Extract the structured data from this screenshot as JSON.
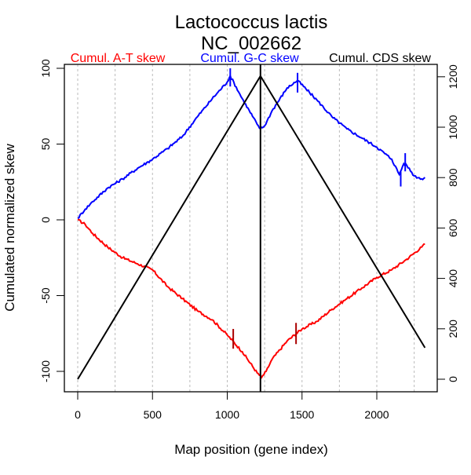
{
  "chart_data": {
    "type": "line",
    "title": "Lactococcus lactis",
    "subtitle": "NC_002662",
    "xlabel": "Map position (gene index)",
    "ylabel": "Cumulated normalized skew",
    "xlim": [
      0,
      2322
    ],
    "ylim_left": [
      -104,
      100
    ],
    "ylim_right": [
      0,
      1250
    ],
    "x_ticks": [
      0,
      500,
      1000,
      1500,
      2000
    ],
    "y_ticks_left": [
      -100,
      -50,
      0,
      50,
      100
    ],
    "y_ticks_right": [
      0,
      200,
      400,
      600,
      800,
      1000,
      1200
    ],
    "grid": "vertical dashed every 250",
    "origin_marker_x": 1222,
    "legend": [
      {
        "label": "Cumul. A-T skew",
        "color": "#ff0000"
      },
      {
        "label": "Cumul. G-C skew",
        "color": "#0000ff"
      },
      {
        "label": "Cumul. CDS skew",
        "color": "#000000"
      }
    ],
    "series": [
      {
        "name": "Cumul. A-T skew",
        "axis": "left",
        "color": "#ff0000",
        "points": [
          [
            0,
            0
          ],
          [
            50,
            -3
          ],
          [
            100,
            -9
          ],
          [
            200,
            -18
          ],
          [
            300,
            -25
          ],
          [
            400,
            -29
          ],
          [
            500,
            -33
          ],
          [
            600,
            -44
          ],
          [
            700,
            -52
          ],
          [
            800,
            -60
          ],
          [
            900,
            -66
          ],
          [
            1000,
            -76
          ],
          [
            1100,
            -87
          ],
          [
            1200,
            -101
          ],
          [
            1230,
            -104
          ],
          [
            1260,
            -100
          ],
          [
            1300,
            -92
          ],
          [
            1400,
            -80
          ],
          [
            1500,
            -72
          ],
          [
            1600,
            -67
          ],
          [
            1700,
            -59
          ],
          [
            1800,
            -52
          ],
          [
            1900,
            -45
          ],
          [
            2000,
            -38
          ],
          [
            2100,
            -33
          ],
          [
            2200,
            -26
          ],
          [
            2300,
            -18
          ],
          [
            2322,
            -16
          ]
        ],
        "markers": [
          [
            1040,
            -72,
            -85
          ],
          [
            1460,
            -68,
            -82
          ]
        ]
      },
      {
        "name": "Cumul. G-C skew",
        "axis": "left",
        "color": "#0000ff",
        "points": [
          [
            0,
            1
          ],
          [
            50,
            7
          ],
          [
            100,
            12
          ],
          [
            200,
            21
          ],
          [
            300,
            27
          ],
          [
            400,
            34
          ],
          [
            500,
            40
          ],
          [
            600,
            47
          ],
          [
            700,
            55
          ],
          [
            800,
            68
          ],
          [
            900,
            80
          ],
          [
            1000,
            91
          ],
          [
            1020,
            95
          ],
          [
            1100,
            80
          ],
          [
            1200,
            63
          ],
          [
            1222,
            60
          ],
          [
            1250,
            62
          ],
          [
            1300,
            72
          ],
          [
            1400,
            87
          ],
          [
            1470,
            92
          ],
          [
            1550,
            84
          ],
          [
            1600,
            79
          ],
          [
            1700,
            68
          ],
          [
            1800,
            60
          ],
          [
            1900,
            54
          ],
          [
            2000,
            48
          ],
          [
            2100,
            40
          ],
          [
            2150,
            30
          ],
          [
            2180,
            37
          ],
          [
            2200,
            36
          ],
          [
            2250,
            29
          ],
          [
            2300,
            27
          ],
          [
            2322,
            28
          ]
        ],
        "markers": [
          [
            1020,
            88,
            100
          ],
          [
            1470,
            84,
            97
          ],
          [
            2160,
            22,
            32
          ],
          [
            2190,
            32,
            44
          ]
        ]
      },
      {
        "name": "Cumul. CDS skew",
        "axis": "right",
        "color": "#000000",
        "points": [
          [
            0,
            0
          ],
          [
            1222,
            1203
          ],
          [
            2322,
            125
          ]
        ]
      }
    ]
  }
}
